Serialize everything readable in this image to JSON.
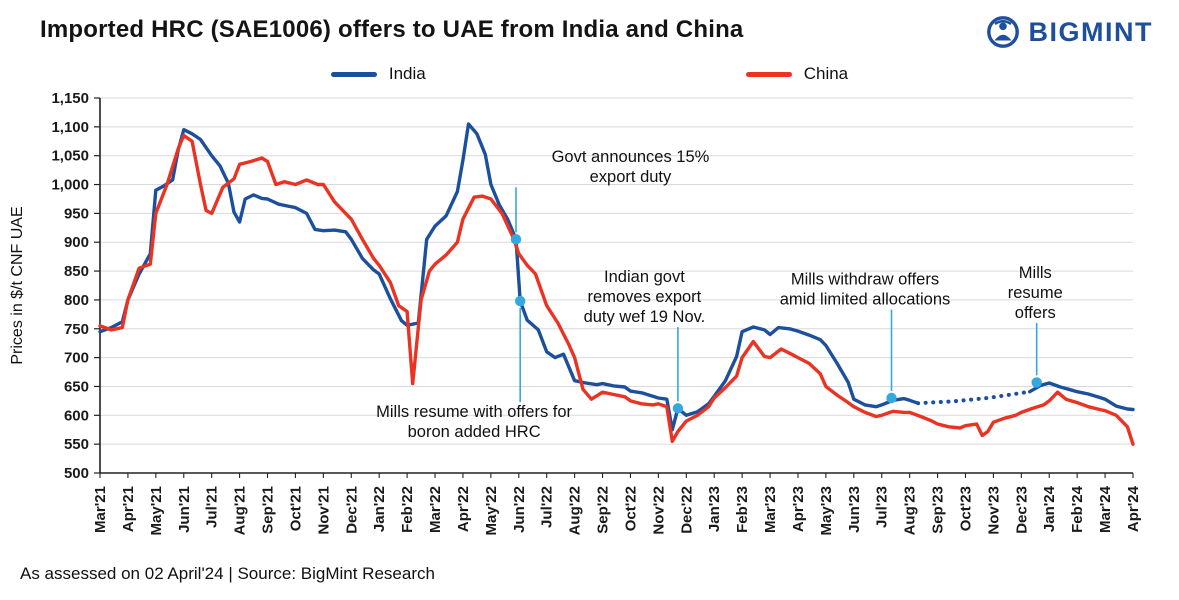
{
  "header": {
    "title": "Imported HRC (SAE1006) offers to UAE from India and China",
    "logo": {
      "text": "BIGMINT",
      "color": "#1d4f9c",
      "icon": "bigmint-person-icon"
    }
  },
  "footer": {
    "text": "As assessed on 02 April'24 | Source: BigMint Research"
  },
  "chart_data": {
    "type": "line",
    "title": "Imported HRC (SAE1006) offers to UAE from India and China",
    "ylabel": "Prices in $/t CNF UAE",
    "ylim": [
      500,
      1150
    ],
    "ytick_step": 50,
    "y_tick_labels": [
      "500",
      "550",
      "600",
      "650",
      "700",
      "750",
      "800",
      "850",
      "900",
      "950",
      "1,000",
      "1,050",
      "1,100",
      "1,150"
    ],
    "x_tick_labels": [
      "Mar'21",
      "Apr'21",
      "May'21",
      "Jun'21",
      "Jul'21",
      "Aug'21",
      "Sep'21",
      "Oct'21",
      "Nov'21",
      "Dec'21",
      "Jan'22",
      "Feb'22",
      "Mar'22",
      "Apr'22",
      "May'22",
      "Jun'22",
      "Jul'22",
      "Aug'22",
      "Sep'22",
      "Oct'22",
      "Nov'22",
      "Dec'22",
      "Jan'23",
      "Feb'23",
      "Mar'23",
      "Apr'23",
      "May'23",
      "Jun'23",
      "Jul'23",
      "Aug'23",
      "Sep'23",
      "Oct'23",
      "Nov'23",
      "Dec'23",
      "Jan'24",
      "Feb'24",
      "Mar'24",
      "Apr'24"
    ],
    "grid": "horizontal",
    "legend_position": "top",
    "annotation_color": "#35a8e0",
    "series": [
      {
        "name": "India",
        "color": "#1d509c",
        "dotted_range": [
          29.3,
          33.3
        ],
        "points": [
          [
            0,
            745
          ],
          [
            0.4,
            752
          ],
          [
            0.8,
            762
          ],
          [
            1,
            800
          ],
          [
            1.4,
            845
          ],
          [
            1.8,
            880
          ],
          [
            2,
            990
          ],
          [
            2.3,
            998
          ],
          [
            2.6,
            1008
          ],
          [
            2.8,
            1060
          ],
          [
            3,
            1095
          ],
          [
            3.3,
            1088
          ],
          [
            3.6,
            1078
          ],
          [
            4,
            1050
          ],
          [
            4.3,
            1032
          ],
          [
            4.6,
            1002
          ],
          [
            4.8,
            952
          ],
          [
            5,
            935
          ],
          [
            5.2,
            975
          ],
          [
            5.5,
            982
          ],
          [
            5.8,
            976
          ],
          [
            6,
            975
          ],
          [
            6.4,
            966
          ],
          [
            6.8,
            962
          ],
          [
            7,
            960
          ],
          [
            7.4,
            950
          ],
          [
            7.7,
            922
          ],
          [
            8,
            920
          ],
          [
            8.4,
            921
          ],
          [
            8.8,
            918
          ],
          [
            9,
            905
          ],
          [
            9.4,
            872
          ],
          [
            9.8,
            852
          ],
          [
            10,
            845
          ],
          [
            10.4,
            802
          ],
          [
            10.8,
            764
          ],
          [
            11,
            756
          ],
          [
            11.4,
            760
          ],
          [
            11.7,
            905
          ],
          [
            12,
            928
          ],
          [
            12.4,
            946
          ],
          [
            12.8,
            988
          ],
          [
            13,
            1042
          ],
          [
            13.2,
            1105
          ],
          [
            13.5,
            1088
          ],
          [
            13.8,
            1052
          ],
          [
            14,
            1000
          ],
          [
            14.3,
            965
          ],
          [
            14.6,
            940
          ],
          [
            14.9,
            905
          ],
          [
            15.05,
            798
          ],
          [
            15.3,
            765
          ],
          [
            15.7,
            748
          ],
          [
            16,
            710
          ],
          [
            16.3,
            700
          ],
          [
            16.6,
            706
          ],
          [
            17,
            660
          ],
          [
            17.4,
            656
          ],
          [
            17.8,
            653
          ],
          [
            18,
            655
          ],
          [
            18.4,
            651
          ],
          [
            18.8,
            649
          ],
          [
            19,
            642
          ],
          [
            19.4,
            639
          ],
          [
            19.8,
            633
          ],
          [
            20,
            630
          ],
          [
            20.3,
            628
          ],
          [
            20.5,
            575
          ],
          [
            20.7,
            612
          ],
          [
            21,
            600
          ],
          [
            21.4,
            606
          ],
          [
            21.8,
            620
          ],
          [
            22,
            633
          ],
          [
            22.4,
            660
          ],
          [
            22.8,
            702
          ],
          [
            23,
            745
          ],
          [
            23.4,
            753
          ],
          [
            23.8,
            748
          ],
          [
            24,
            740
          ],
          [
            24.3,
            752
          ],
          [
            24.7,
            750
          ],
          [
            25,
            746
          ],
          [
            25.4,
            739
          ],
          [
            25.8,
            731
          ],
          [
            26,
            721
          ],
          [
            26.4,
            690
          ],
          [
            26.8,
            657
          ],
          [
            27,
            628
          ],
          [
            27.4,
            618
          ],
          [
            27.8,
            615
          ],
          [
            28,
            618
          ],
          [
            28.4,
            626
          ],
          [
            28.8,
            629
          ],
          [
            29,
            626
          ],
          [
            29.3,
            621
          ],
          [
            30.5,
            624
          ],
          [
            31.8,
            630
          ],
          [
            33.3,
            641
          ],
          [
            33.7,
            652
          ],
          [
            34,
            656
          ],
          [
            34.4,
            649
          ],
          [
            34.7,
            645
          ],
          [
            35,
            641
          ],
          [
            35.4,
            637
          ],
          [
            35.8,
            631
          ],
          [
            36,
            628
          ],
          [
            36.4,
            616
          ],
          [
            36.8,
            611
          ],
          [
            37,
            610
          ]
        ]
      },
      {
        "name": "China",
        "color": "#ea3323",
        "points": [
          [
            0,
            755
          ],
          [
            0.4,
            748
          ],
          [
            0.8,
            752
          ],
          [
            1,
            800
          ],
          [
            1.4,
            855
          ],
          [
            1.8,
            862
          ],
          [
            2,
            950
          ],
          [
            2.4,
            1000
          ],
          [
            2.8,
            1062
          ],
          [
            3,
            1085
          ],
          [
            3.3,
            1075
          ],
          [
            3.6,
            1000
          ],
          [
            3.8,
            955
          ],
          [
            4,
            950
          ],
          [
            4.4,
            995
          ],
          [
            4.8,
            1010
          ],
          [
            5,
            1035
          ],
          [
            5.4,
            1040
          ],
          [
            5.8,
            1046
          ],
          [
            6,
            1040
          ],
          [
            6.3,
            1000
          ],
          [
            6.6,
            1005
          ],
          [
            7,
            1000
          ],
          [
            7.4,
            1008
          ],
          [
            7.8,
            1000
          ],
          [
            8,
            1000
          ],
          [
            8.4,
            970
          ],
          [
            8.8,
            950
          ],
          [
            9,
            940
          ],
          [
            9.4,
            905
          ],
          [
            9.8,
            872
          ],
          [
            10,
            860
          ],
          [
            10.4,
            830
          ],
          [
            10.7,
            790
          ],
          [
            11,
            780
          ],
          [
            11.2,
            655
          ],
          [
            11.5,
            800
          ],
          [
            11.8,
            850
          ],
          [
            12,
            862
          ],
          [
            12.4,
            878
          ],
          [
            12.8,
            900
          ],
          [
            13,
            940
          ],
          [
            13.4,
            978
          ],
          [
            13.7,
            980
          ],
          [
            14,
            975
          ],
          [
            14.4,
            950
          ],
          [
            14.8,
            908
          ],
          [
            15,
            880
          ],
          [
            15.3,
            860
          ],
          [
            15.6,
            845
          ],
          [
            16,
            790
          ],
          [
            16.4,
            760
          ],
          [
            16.8,
            722
          ],
          [
            17,
            700
          ],
          [
            17.3,
            645
          ],
          [
            17.6,
            628
          ],
          [
            18,
            640
          ],
          [
            18.4,
            636
          ],
          [
            18.8,
            632
          ],
          [
            19,
            625
          ],
          [
            19.4,
            620
          ],
          [
            19.8,
            618
          ],
          [
            20,
            620
          ],
          [
            20.3,
            615
          ],
          [
            20.5,
            555
          ],
          [
            20.7,
            572
          ],
          [
            21,
            590
          ],
          [
            21.4,
            600
          ],
          [
            21.8,
            615
          ],
          [
            22,
            630
          ],
          [
            22.4,
            648
          ],
          [
            22.8,
            668
          ],
          [
            23,
            700
          ],
          [
            23.4,
            728
          ],
          [
            23.8,
            702
          ],
          [
            24,
            700
          ],
          [
            24.4,
            715
          ],
          [
            24.8,
            705
          ],
          [
            25,
            700
          ],
          [
            25.4,
            690
          ],
          [
            25.8,
            672
          ],
          [
            26,
            650
          ],
          [
            26.4,
            635
          ],
          [
            26.8,
            622
          ],
          [
            27,
            615
          ],
          [
            27.4,
            605
          ],
          [
            27.8,
            598
          ],
          [
            28,
            600
          ],
          [
            28.4,
            607
          ],
          [
            28.8,
            605
          ],
          [
            29,
            605
          ],
          [
            29.4,
            598
          ],
          [
            29.8,
            590
          ],
          [
            30,
            585
          ],
          [
            30.4,
            580
          ],
          [
            30.8,
            578
          ],
          [
            31,
            582
          ],
          [
            31.4,
            585
          ],
          [
            31.6,
            565
          ],
          [
            31.8,
            572
          ],
          [
            32,
            588
          ],
          [
            32.4,
            595
          ],
          [
            32.8,
            600
          ],
          [
            33,
            605
          ],
          [
            33.4,
            612
          ],
          [
            33.8,
            618
          ],
          [
            34,
            625
          ],
          [
            34.3,
            640
          ],
          [
            34.6,
            628
          ],
          [
            35,
            622
          ],
          [
            35.4,
            615
          ],
          [
            35.8,
            610
          ],
          [
            36,
            608
          ],
          [
            36.4,
            600
          ],
          [
            36.8,
            580
          ],
          [
            37,
            550
          ]
        ]
      }
    ],
    "annotations": [
      {
        "lines": [
          "Govt announces 15%",
          "export duty"
        ],
        "dot": [
          14.9,
          905
        ],
        "text_pos": [
          19.0,
          1030
        ]
      },
      {
        "lines": [
          "Mills resume with offers for",
          "boron added HRC"
        ],
        "dot": [
          15.05,
          798
        ],
        "text_pos": [
          13.4,
          588
        ]
      },
      {
        "lines": [
          "Indian govt",
          "removes export",
          "duty wef 19 Nov."
        ],
        "dot": [
          20.7,
          612
        ],
        "text_pos": [
          19.5,
          805
        ]
      },
      {
        "lines": [
          "Mills withdraw offers",
          "amid limited allocations"
        ],
        "dot": [
          28.35,
          630
        ],
        "text_pos": [
          27.4,
          818
        ]
      },
      {
        "lines": [
          "Mills",
          "resume",
          "offers"
        ],
        "dot": [
          33.55,
          657
        ],
        "text_pos": [
          33.5,
          812
        ]
      }
    ]
  }
}
